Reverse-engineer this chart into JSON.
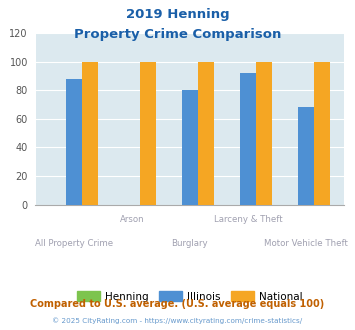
{
  "title_line1": "2019 Henning",
  "title_line2": "Property Crime Comparison",
  "categories": [
    "All Property Crime",
    "Arson",
    "Burglary",
    "Larceny & Theft",
    "Motor Vehicle Theft"
  ],
  "cat_labels_row1": [
    "",
    "Arson",
    "",
    "Larceny & Theft",
    ""
  ],
  "cat_labels_row2": [
    "All Property Crime",
    "",
    "Burglary",
    "",
    "Motor Vehicle Theft"
  ],
  "henning": [
    0,
    0,
    0,
    0,
    0
  ],
  "illinois": [
    88,
    0,
    80,
    92,
    68
  ],
  "national": [
    100,
    100,
    100,
    100,
    100
  ],
  "henning_color": "#7dc44e",
  "illinois_color": "#4e90d3",
  "national_color": "#f5a623",
  "ylim": [
    0,
    120
  ],
  "yticks": [
    0,
    20,
    40,
    60,
    80,
    100,
    120
  ],
  "bar_width": 0.28,
  "bg_color": "#dce9ef",
  "legend_labels": [
    "Henning",
    "Illinois",
    "National"
  ],
  "footnote1": "Compared to U.S. average. (U.S. average equals 100)",
  "footnote2": "© 2025 CityRating.com - https://www.cityrating.com/crime-statistics/",
  "title_color": "#1a5fa8",
  "footnote1_color": "#c06000",
  "footnote2_color": "#6699cc",
  "xlabel_color": "#a0a0b0",
  "ytick_color": "#555555"
}
